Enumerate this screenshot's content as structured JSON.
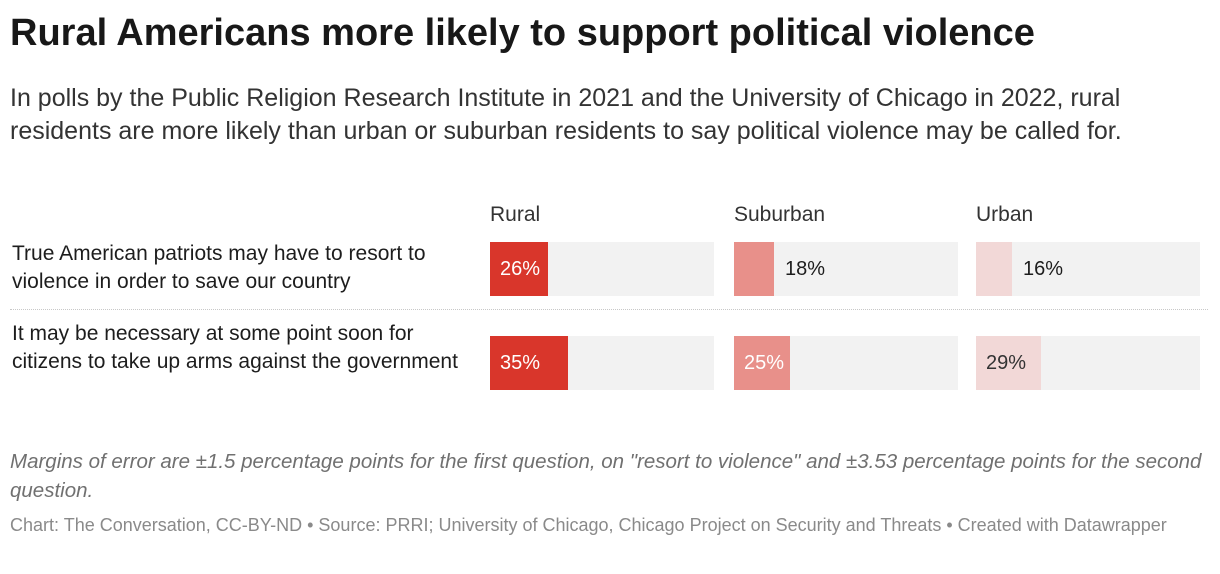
{
  "title": "Rural Americans more likely to support political violence",
  "subtitle": "In polls by the Public Religion Research Institute in 2021 and the University of Chicago in 2022, rural residents are more likely than urban or suburban residents to say political violence may be called for.",
  "colors": {
    "rural": "#d9362b",
    "suburban": "#e8908a",
    "urban": "#f2d8d7",
    "bar_background": "#f2f2f2"
  },
  "chart_data": {
    "type": "bar",
    "orientation": "horizontal",
    "columns": [
      "Rural",
      "Suburban",
      "Urban"
    ],
    "rows": [
      {
        "label": "True American patriots may have to resort to violence in order to save our country",
        "values": [
          26,
          18,
          16
        ],
        "labels": [
          "26%",
          "18%",
          "16%"
        ]
      },
      {
        "label": "It may be necessary at some point soon for citizens to take up arms against the government",
        "values": [
          35,
          25,
          29
        ],
        "labels": [
          "35%",
          "25%",
          "29%"
        ]
      }
    ],
    "xlim": [
      0,
      100
    ],
    "unit": "%"
  },
  "notes": "Margins of error are ±1.5 percentage points for the first question, on \"resort to violence\" and ±3.53 percentage points for the second question.",
  "footer": "Chart: The Conversation, CC-BY-ND • Source: PRRI; University of Chicago, Chicago Project on Security and Threats • Created with Datawrapper"
}
